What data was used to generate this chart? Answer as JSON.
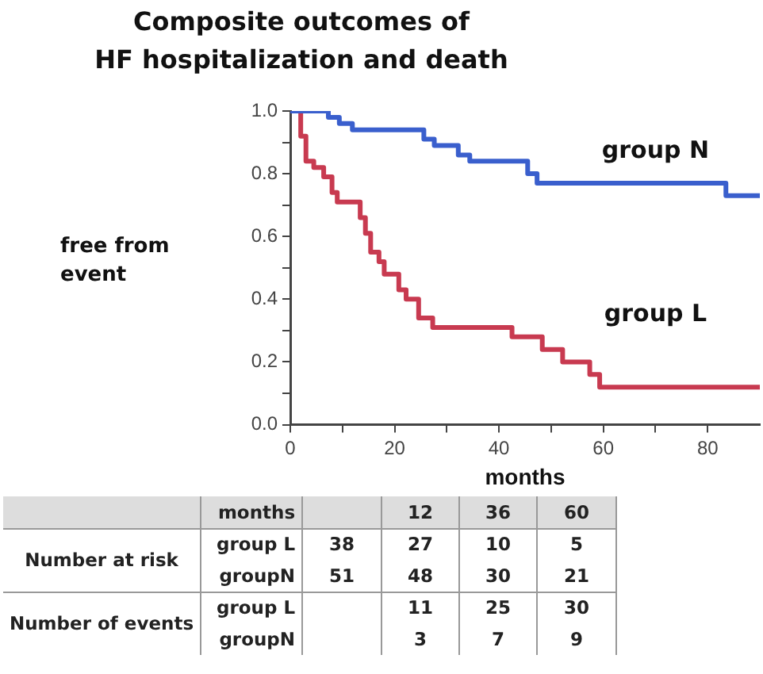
{
  "chart_data": {
    "type": "step",
    "title": "Composite outcomes of\nHF hospitalization and death",
    "xlabel": "months",
    "ylabel": "free from\nevent",
    "xlim": [
      0,
      90
    ],
    "xticks": [
      0,
      {
        "value": 10,
        "label": null
      },
      20,
      {
        "value": 30,
        "label": null
      },
      40,
      {
        "value": 50,
        "label": null
      },
      60,
      {
        "value": 70,
        "label": null
      },
      80
    ],
    "ylim": [
      0,
      1
    ],
    "yticks": [
      {
        "value": 0,
        "label": "0.0"
      },
      {
        "value": 0.1,
        "label": null
      },
      {
        "value": 0.2,
        "label": "0.2"
      },
      {
        "value": 0.3,
        "label": null
      },
      {
        "value": 0.4,
        "label": "0.4"
      },
      {
        "value": 0.5,
        "label": null
      },
      {
        "value": 0.6,
        "label": "0.6"
      },
      {
        "value": 0.7,
        "label": null
      },
      {
        "value": 0.8,
        "label": "0.8"
      },
      {
        "value": 0.9,
        "label": null
      },
      {
        "value": 1,
        "label": "1.0"
      }
    ],
    "grid": false,
    "legend": false,
    "series": [
      {
        "name": "group N",
        "color": "#3a5fcd",
        "x": [
          0,
          7.3,
          9.4,
          11.9,
          25.6,
          27.6,
          32.2,
          34.4,
          45.5,
          47.3,
          83.5,
          90
        ],
        "values": [
          1,
          0.98,
          0.96,
          0.94,
          0.91,
          0.89,
          0.86,
          0.84,
          0.8,
          0.77,
          0.73,
          0.73
        ]
      },
      {
        "name": "group L",
        "color": "#c83a50",
        "x": [
          0,
          2,
          3,
          4.5,
          6.4,
          8,
          9,
          13.4,
          14.4,
          15.4,
          17,
          18,
          20.8,
          22.2,
          24.6,
          27.3,
          42.5,
          48.3,
          52.2,
          57.4,
          59.3,
          90
        ],
        "values": [
          1,
          0.92,
          0.84,
          0.82,
          0.79,
          0.74,
          0.71,
          0.66,
          0.61,
          0.55,
          0.52,
          0.48,
          0.43,
          0.4,
          0.34,
          0.31,
          0.28,
          0.24,
          0.2,
          0.16,
          0.12,
          0.12
        ]
      }
    ],
    "annotations": [
      "months",
      "12",
      "36",
      "60",
      "Number at risk",
      "group L",
      "38",
      "27",
      "10",
      "5",
      "groupN",
      "51",
      "48",
      "30",
      "21",
      "Number of events",
      "group L",
      "11",
      "25",
      "30",
      "groupN",
      "3",
      "7",
      "9"
    ]
  }
}
